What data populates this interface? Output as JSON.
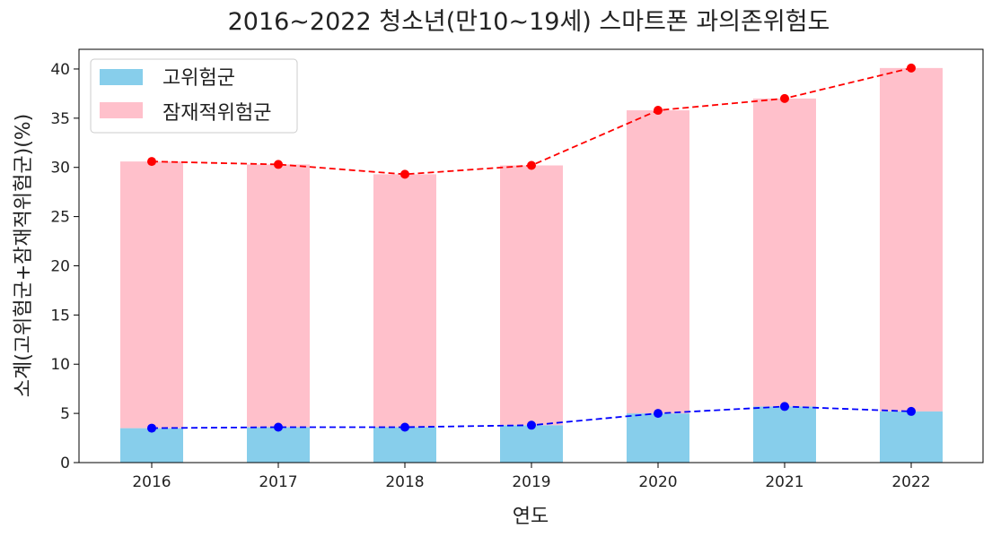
{
  "chart_data": {
    "type": "bar",
    "title": "2016~2022 청소년(만10~19세) 스마트폰 과의존위험도",
    "xlabel": "연도",
    "ylabel": "소계(고위험군+잠재적위험군)(%)",
    "categories": [
      "2016",
      "2017",
      "2018",
      "2019",
      "2020",
      "2021",
      "2022"
    ],
    "stacked": true,
    "series": [
      {
        "name": "고위험군",
        "values": [
          3.5,
          3.6,
          3.6,
          3.8,
          5.0,
          5.7,
          5.2
        ],
        "color": "#87CEEB",
        "line_color": "#0000FF"
      },
      {
        "name": "잠재적위험군",
        "values": [
          27.1,
          26.7,
          25.7,
          26.4,
          30.8,
          31.3,
          34.9
        ],
        "color": "#FFC0CB",
        "line_color": "#FF0000"
      }
    ],
    "line_overlays": [
      {
        "of": "고위험군",
        "values": [
          3.5,
          3.6,
          3.6,
          3.8,
          5.0,
          5.7,
          5.2
        ],
        "color": "#0000FF",
        "style": "dashed"
      },
      {
        "of": "소계",
        "values": [
          30.6,
          30.3,
          29.3,
          30.2,
          35.8,
          37.0,
          40.1
        ],
        "color": "#FF0000",
        "style": "dashed"
      }
    ],
    "ylim": [
      0,
      42
    ],
    "yticks": [
      0,
      5,
      10,
      15,
      20,
      25,
      30,
      35,
      40
    ],
    "grid": false,
    "legend": "top-left"
  }
}
